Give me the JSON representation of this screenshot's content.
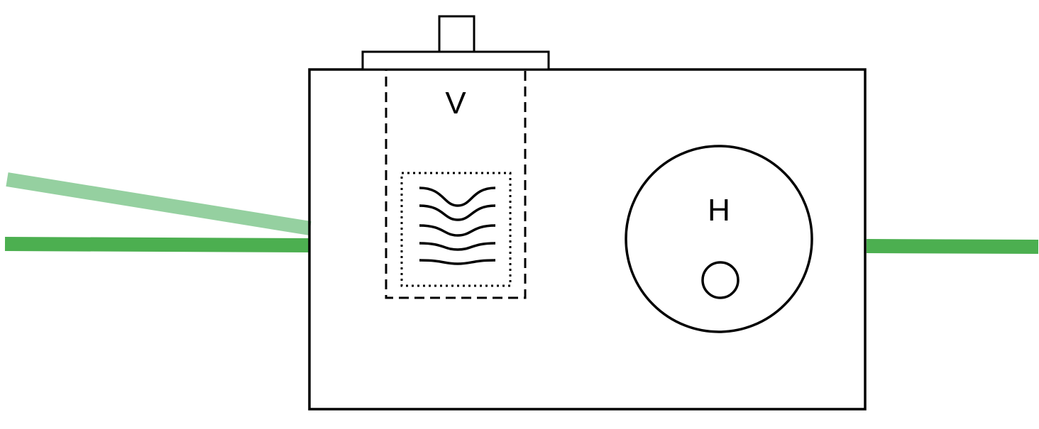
{
  "labels": {
    "vertical": "V",
    "horizontal": "H"
  },
  "colors": {
    "line": "#000000",
    "fiber": "#4caf50",
    "fiber_faded": "#95d0a0",
    "background": "#ffffff"
  }
}
